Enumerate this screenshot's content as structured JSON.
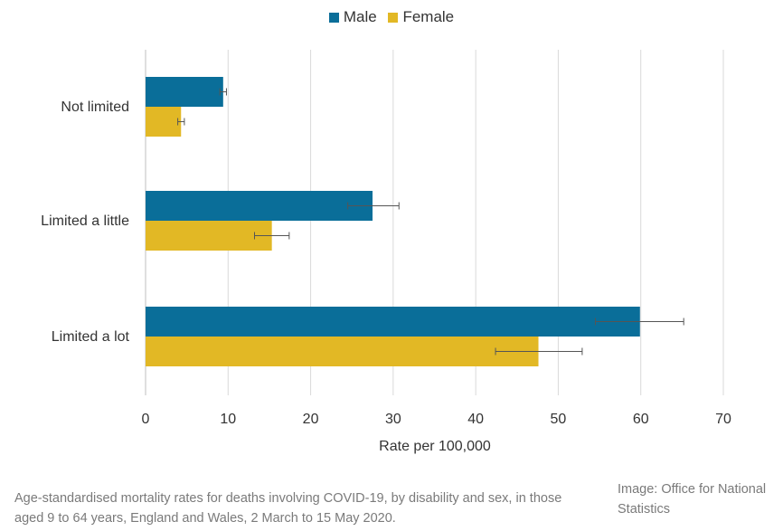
{
  "chart_data": {
    "type": "bar",
    "orientation": "horizontal",
    "categories": [
      "Not limited",
      "Limited a little",
      "Limited a lot"
    ],
    "series": [
      {
        "name": "Male",
        "color": "#0a6e99",
        "values": [
          9.4,
          27.5,
          59.9
        ],
        "error_low": [
          9.0,
          24.5,
          54.5
        ],
        "error_high": [
          9.8,
          30.7,
          65.2
        ]
      },
      {
        "name": "Female",
        "color": "#e2b825",
        "values": [
          4.3,
          15.3,
          47.6
        ],
        "error_low": [
          3.9,
          13.2,
          42.4
        ],
        "error_high": [
          4.7,
          17.4,
          52.9
        ]
      }
    ],
    "xlabel": "Rate per 100,000",
    "ylabel": "",
    "xlim": [
      0,
      70
    ],
    "xticks": [
      0,
      10,
      20,
      30,
      40,
      50,
      60,
      70
    ],
    "grid": true,
    "legend_position": "top-center"
  },
  "caption": "Age-standardised mortality rates for deaths involving COVID-19, by disability and sex, in those aged 9 to 64 years, England and Wales, 2 March to 15 May 2020.",
  "credit": "Image: Office for National Statistics"
}
